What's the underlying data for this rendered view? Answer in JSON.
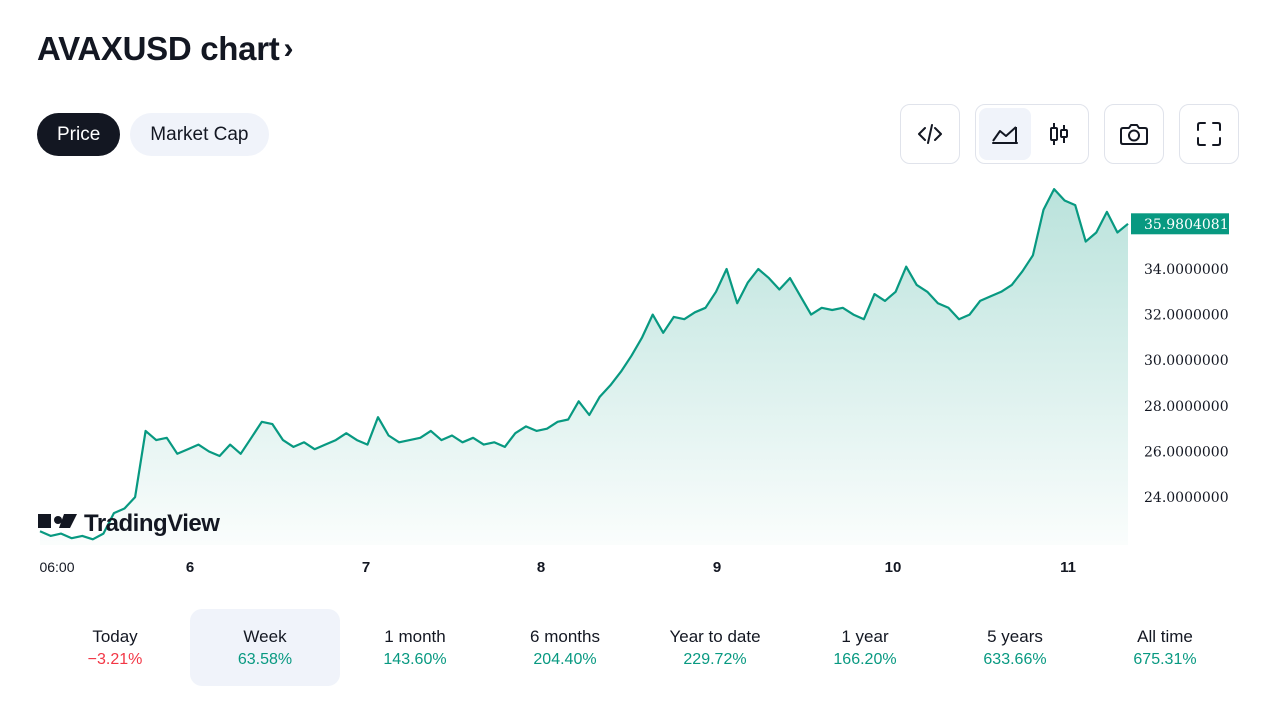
{
  "header": {
    "title": "AVAXUSD chart",
    "chevron": "›"
  },
  "tabs": [
    {
      "label": "Price",
      "active": true
    },
    {
      "label": "Market Cap",
      "active": false
    }
  ],
  "toolbar": {
    "embed_icon": "code-icon",
    "area_icon": "area-chart-icon",
    "candles_icon": "candlestick-icon",
    "snapshot_icon": "camera-icon",
    "fullscreen_icon": "fullscreen-icon"
  },
  "logo": {
    "text": "TradingView"
  },
  "colors": {
    "line": "#089981",
    "negative": "#f23645",
    "dark": "#131722"
  },
  "chart_data": {
    "type": "area",
    "x_ticks": [
      "06:00",
      "6",
      "7",
      "8",
      "9",
      "10",
      "11"
    ],
    "y_ticks": [
      "24.0000000",
      "26.0000000",
      "28.0000000",
      "30.0000000",
      "32.0000000",
      "34.0000000"
    ],
    "last_price_label": "35.9804081",
    "last_price": 35.98,
    "ylim": [
      21.9,
      37.9
    ],
    "series": [
      {
        "values": [
          22.5,
          22.3,
          22.4,
          22.2,
          22.3,
          22.15,
          22.4,
          23.3,
          23.5,
          24.0,
          26.9,
          26.5,
          26.6,
          25.9,
          26.1,
          26.3,
          26.0,
          25.8,
          26.3,
          25.9,
          26.6,
          27.3,
          27.2,
          26.5,
          26.2,
          26.4,
          26.1,
          26.3,
          26.5,
          26.8,
          26.5,
          26.3,
          27.5,
          26.7,
          26.4,
          26.5,
          26.6,
          26.9,
          26.5,
          26.7,
          26.4,
          26.6,
          26.3,
          26.4,
          26.2,
          26.8,
          27.1,
          26.9,
          27.0,
          27.3,
          27.4,
          28.2,
          27.6,
          28.4,
          28.9,
          29.5,
          30.2,
          31.0,
          32.0,
          31.2,
          31.9,
          31.8,
          32.1,
          32.3,
          33.0,
          34.0,
          32.5,
          33.4,
          34.0,
          33.6,
          33.1,
          33.6,
          32.8,
          32.0,
          32.3,
          32.2,
          32.3,
          32.0,
          31.8,
          32.9,
          32.6,
          33.0,
          34.1,
          33.3,
          33.0,
          32.5,
          32.3,
          31.8,
          32.0,
          32.6,
          32.8,
          33.0,
          33.3,
          33.9,
          34.6,
          36.6,
          37.5,
          37.0,
          36.8,
          35.2,
          35.6,
          36.5,
          35.6,
          35.98
        ]
      }
    ]
  },
  "periods": [
    {
      "label": "Today",
      "value": "−3.21%",
      "negative": true,
      "active": false
    },
    {
      "label": "Week",
      "value": "63.58%",
      "negative": false,
      "active": true
    },
    {
      "label": "1 month",
      "value": "143.60%",
      "negative": false,
      "active": false
    },
    {
      "label": "6 months",
      "value": "204.40%",
      "negative": false,
      "active": false
    },
    {
      "label": "Year to date",
      "value": "229.72%",
      "negative": false,
      "active": false
    },
    {
      "label": "1 year",
      "value": "166.20%",
      "negative": false,
      "active": false
    },
    {
      "label": "5 years",
      "value": "633.66%",
      "negative": false,
      "active": false
    },
    {
      "label": "All time",
      "value": "675.31%",
      "negative": false,
      "active": false
    }
  ]
}
